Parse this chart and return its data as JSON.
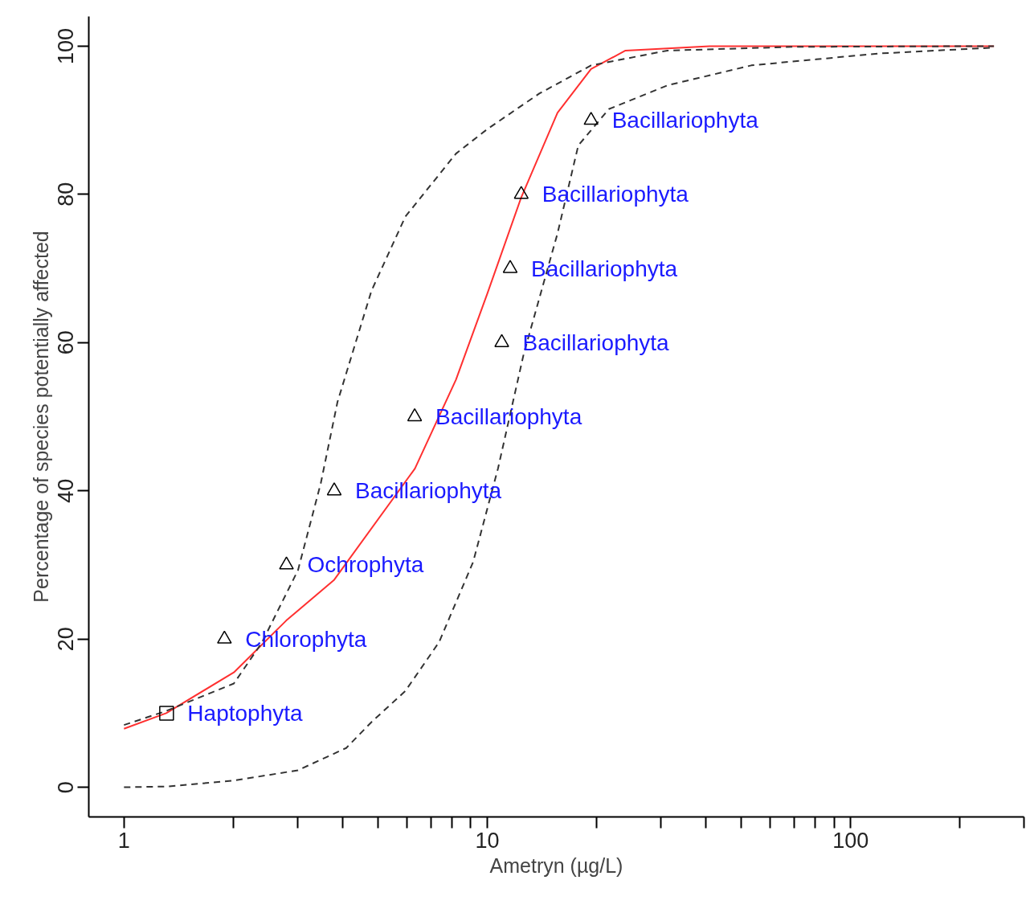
{
  "chart_data": {
    "type": "line",
    "xlabel": "Ametryn (µg/L)",
    "ylabel": "Percentage of species potentially affected",
    "log": "x",
    "grid": false,
    "xlim": [
      0.8,
      300
    ],
    "ylim": [
      -4,
      104
    ],
    "xticks": [
      1,
      {
        "value": 2,
        "label": null
      },
      {
        "value": 3,
        "label": null
      },
      {
        "value": 4,
        "label": null
      },
      {
        "value": 5,
        "label": null
      },
      {
        "value": 6,
        "label": null
      },
      {
        "value": 7,
        "label": null
      },
      {
        "value": 8,
        "label": null
      },
      {
        "value": 9,
        "label": null
      },
      10,
      {
        "value": 20,
        "label": null
      },
      {
        "value": 30,
        "label": null
      },
      {
        "value": 40,
        "label": null
      },
      {
        "value": 50,
        "label": null
      },
      {
        "value": 60,
        "label": null
      },
      {
        "value": 70,
        "label": null
      },
      {
        "value": 80,
        "label": null
      },
      {
        "value": 90,
        "label": null
      },
      100,
      {
        "value": 200,
        "label": null
      },
      {
        "value": 300,
        "label": null
      }
    ],
    "yticks": [
      0,
      20,
      40,
      60,
      80,
      100
    ],
    "series": [
      {
        "type": "line",
        "color": "#ff3030",
        "line_style": "solid",
        "marker": "none",
        "x": [
          1,
          1.307,
          2.006,
          2.797,
          3.79,
          6.32,
          8.2,
          10,
          12.4,
          15.6,
          19.3,
          24,
          40.9,
          248
        ],
        "values": [
          7.9,
          10,
          15.5,
          22.5,
          28,
          43,
          55,
          66.6,
          79.6,
          91,
          96.9,
          99.4,
          100,
          100
        ]
      },
      {
        "type": "line",
        "color": "#333333",
        "line_style": "dashed",
        "marker": "none",
        "x": [
          1,
          1.307,
          2.006,
          2.395,
          3.013,
          3.48,
          3.87,
          4.8,
          5.95,
          8.2,
          10,
          13.9,
          19.3,
          31.3,
          69.8,
          248
        ],
        "values": [
          8.4,
          10.3,
          14,
          19.5,
          29.3,
          41,
          52,
          67,
          77,
          85.5,
          88.8,
          93.6,
          97.4,
          99.4,
          99.9,
          100
        ]
      },
      {
        "type": "line",
        "color": "#333333",
        "line_style": "dashed",
        "marker": "none",
        "x": [
          1,
          1.307,
          2.006,
          3.013,
          4.09,
          4.8,
          5.95,
          7.37,
          9.14,
          10.7,
          12.6,
          15.6,
          17.8,
          21.6,
          31.3,
          53.3,
          119,
          248
        ],
        "values": [
          0,
          0.1,
          0.9,
          2.3,
          5.3,
          8.8,
          13,
          19.6,
          30.4,
          43,
          58.5,
          74.7,
          86.6,
          91.5,
          94.7,
          97.4,
          99,
          99.8
        ]
      },
      {
        "type": "scatter",
        "color": "#000000",
        "marker": "square",
        "x": [
          1.31
        ],
        "values": [
          10
        ]
      },
      {
        "type": "scatter",
        "color": "#000000",
        "marker": "triangle",
        "x": [
          1.89,
          2.8,
          3.79,
          6.31,
          10.96,
          11.56,
          12.4,
          19.3
        ],
        "values": [
          20,
          30,
          40,
          50,
          60,
          70,
          80,
          90
        ]
      }
    ],
    "annotations": [
      {
        "text": "Haptophyta",
        "x": 1.31,
        "y": 10
      },
      {
        "text": "Chlorophyta",
        "x": 1.89,
        "y": 20
      },
      {
        "text": "Ochrophyta",
        "x": 2.8,
        "y": 30
      },
      {
        "text": "Bacillariophyta",
        "x": 3.79,
        "y": 40
      },
      {
        "text": "Bacillariophyta",
        "x": 6.31,
        "y": 50
      },
      {
        "text": "Bacillariophyta",
        "x": 10.96,
        "y": 60
      },
      {
        "text": "Bacillariophyta",
        "x": 11.56,
        "y": 70
      },
      {
        "text": "Bacillariophyta",
        "x": 12.4,
        "y": 80
      },
      {
        "text": "Bacillariophyta",
        "x": 19.3,
        "y": 90
      }
    ]
  }
}
